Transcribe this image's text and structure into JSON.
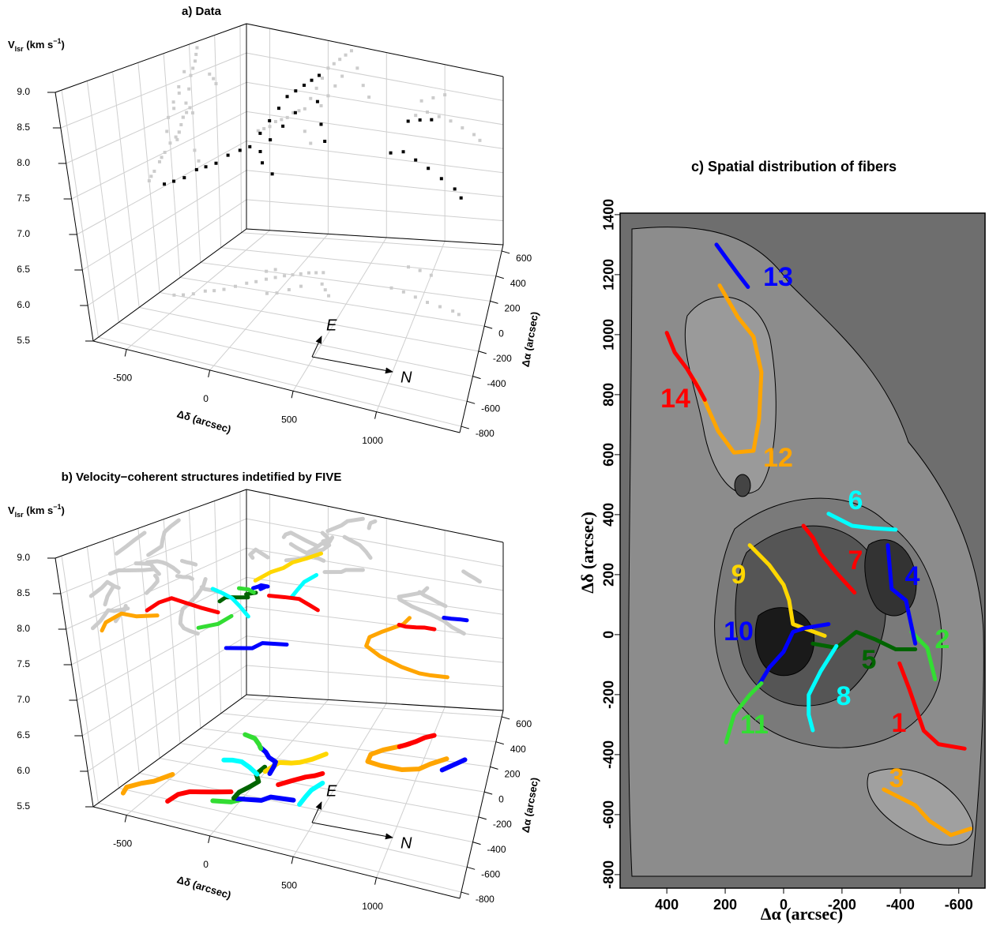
{
  "chart_data": [
    {
      "type": "scatter3d",
      "title": "a) Data",
      "zlabel": [
        "V",
        "lsr",
        " (km s",
        "−1",
        ")"
      ],
      "xlabel": "Δδ (arcsec)",
      "ylabel": "Δα (arcsec)",
      "xlim": [
        -700,
        1500
      ],
      "xticks": [
        -500,
        0,
        500,
        1000
      ],
      "ylim": [
        -850,
        650
      ],
      "yticks": [
        600,
        400,
        200,
        0,
        -200,
        -400,
        -600,
        -800
      ],
      "zlim": [
        5.5,
        9.0
      ],
      "zticks": [
        5.5,
        {
          "value": 6,
          "label": "6.0"
        },
        6.5,
        {
          "value": 7,
          "label": "7.0"
        },
        7.5,
        {
          "value": 8,
          "label": "8.0"
        },
        8.5,
        {
          "value": 9,
          "label": "9.0"
        }
      ],
      "grid": true,
      "compass": [
        "E",
        "N"
      ],
      "shadow_color": "#cccccc",
      "points": {
        "color": "#000000",
        "x": [
          -600,
          -550,
          -500,
          -450,
          -400,
          -350,
          -300,
          -250,
          -200,
          -150,
          -100,
          -50,
          0,
          50,
          100,
          150,
          200,
          120,
          60,
          0,
          -60,
          250,
          300,
          350,
          -200,
          -150,
          800,
          900,
          1000,
          750,
          850,
          950,
          1050,
          1150,
          1250,
          1300
        ],
        "y": [
          -200,
          -180,
          -150,
          -100,
          -80,
          -50,
          0,
          50,
          80,
          120,
          150,
          180,
          200,
          220,
          240,
          250,
          260,
          100,
          50,
          0,
          -20,
          150,
          100,
          50,
          200,
          230,
          400,
          380,
          350,
          200,
          180,
          150,
          120,
          100,
          80,
          60
        ],
        "z": [
          7.2,
          7.25,
          7.3,
          7.4,
          7.45,
          7.5,
          7.6,
          7.65,
          7.7,
          7.9,
          8.1,
          8.3,
          8.5,
          8.6,
          8.7,
          8.8,
          8.9,
          8.4,
          8.2,
          8.0,
          7.8,
          8.6,
          8.3,
          8.1,
          7.3,
          7.1,
          8.2,
          8.3,
          8.4,
          7.9,
          8.0,
          7.95,
          7.9,
          7.8,
          7.7,
          7.6
        ]
      }
    },
    {
      "type": "scatter3d",
      "title": "b) Velocity−coherent structures indetified by FIVE",
      "zlabel": [
        "V",
        "lsr",
        " (km s",
        "−1",
        ")"
      ],
      "xlabel": "Δδ (arcsec)",
      "ylabel": "Δα (arcsec)",
      "xlim": [
        -700,
        1500
      ],
      "xticks": [
        -500,
        0,
        500,
        1000
      ],
      "ylim": [
        -850,
        650
      ],
      "yticks": [
        600,
        400,
        200,
        0,
        -200,
        -400,
        -600,
        -800
      ],
      "zlim": [
        5.5,
        9.0
      ],
      "zticks": [
        5.5,
        {
          "value": 6,
          "label": "6.0"
        },
        6.5,
        {
          "value": 7,
          "label": "7.0"
        },
        7.5,
        {
          "value": 8,
          "label": "8.0"
        },
        8.5,
        {
          "value": 9,
          "label": "9.0"
        }
      ],
      "grid": true,
      "compass": [
        "E",
        "N"
      ],
      "shadow_color": "#cccccc",
      "series": [
        {
          "color": "#ff0000",
          "x": [
            -96,
            -180,
            -250,
            -320,
            -365,
            -380
          ],
          "y": [
            -397,
            -430,
            -455,
            -480,
            -530,
            -620
          ],
          "z": [
            8.25,
            8.3,
            8.35,
            8.4,
            8.35,
            8.3
          ]
        },
        {
          "color": "#33dd33",
          "x": [
            9,
            -44,
            -149
          ],
          "y": [
            -438,
            -492,
            -519
          ],
          "z": [
            8.3,
            8.2,
            8.1
          ]
        },
        {
          "color": "#ffa500",
          "x": [
            -516,
            -569,
            -621,
            -668,
            -647
          ],
          "y": [
            -343,
            -451,
            -500,
            -573,
            -640
          ],
          "z": [
            7.9,
            7.95,
            8.0,
            7.9,
            7.85
          ]
        },
        {
          "color": "#0000ff",
          "x": [
            298,
            153,
            114,
            -30
          ],
          "y": [
            -357,
            -370,
            -419,
            -451
          ],
          "z": [
            7.95,
            7.9,
            7.85,
            7.8
          ]
        },
        {
          "color": "#006400",
          "x": [
            -30,
            -44,
            9,
            -17,
            -49,
            -49
          ],
          "y": [
            -100,
            -181,
            -249,
            -316,
            -384,
            -451
          ],
          "z": [
            8.3,
            8.35,
            8.4,
            8.45,
            8.5,
            8.5
          ]
        },
        {
          "color": "#00ffff",
          "x": [
            403,
            363,
            355,
            350
          ],
          "y": [
            -154,
            -235,
            -303,
            -384
          ],
          "z": [
            8.9,
            8.85,
            8.8,
            8.75
          ]
        },
        {
          "color": "#ff0000",
          "x": [
            363,
            324,
            271,
            206,
            140
          ],
          "y": [
            -68,
            -100,
            -127,
            -181,
            -243
          ],
          "z": [
            8.2,
            8.3,
            8.4,
            8.45,
            8.5
          ]
        },
        {
          "color": "#00ffff",
          "x": [
            -38,
            -122,
            -201,
            -267,
            -319
          ],
          "y": [
            -181,
            -127,
            -86,
            -86,
            -100
          ],
          "z": [
            8.0,
            8.05,
            8.1,
            8.15,
            8.2
          ]
        },
        {
          "color": "#ffd700",
          "x": [
            298,
            232,
            166,
            114,
            35,
            -4
          ],
          "y": [
            116,
            49,
            0,
            -19,
            -32,
            -141
          ],
          "z": [
            8.9,
            8.85,
            8.8,
            8.7,
            8.6,
            8.55
          ]
        },
        {
          "color": "#0000ff",
          "x": [
            -175,
            -110,
            -57,
            9,
            22,
            35
          ],
          "y": [
            89,
            49,
            0,
            -32,
            -73,
            -154
          ],
          "z": [
            8.1,
            8.2,
            8.3,
            8.35,
            8.4,
            8.45
          ]
        },
        {
          "color": "#33dd33",
          "x": [
            -359,
            -267,
            -201,
            -162
          ],
          "y": [
            197,
            170,
            116,
            76
          ],
          "z": [
            7.9,
            7.95,
            8.0,
            8.05
          ]
        },
        {
          "color": "#ffa500",
          "x": [
            1164,
            1059,
            993,
            875,
            718,
            613,
            607,
            678,
            809,
            849
          ],
          "y": [
            219,
            157,
            103,
            76,
            84,
            103,
            170,
            224,
            284,
            305
          ],
          "z": [
            7.0,
            7.1,
            7.2,
            7.3,
            7.4,
            7.5,
            7.55,
            7.6,
            7.7,
            7.8
          ]
        },
        {
          "color": "#0000ff",
          "x": [
            1300,
            1256,
            1203,
            1159
          ],
          "y": [
            230,
            197,
            157,
            122
          ],
          "z": [
            8.1,
            8.15,
            8.2,
            8.25
          ]
        },
        {
          "color": "#ff0000",
          "x": [
            1006,
            941,
            888,
            823,
            783
          ],
          "y": [
            400,
            373,
            332,
            292,
            270
          ],
          "z": [
            7.5,
            7.55,
            7.6,
            7.65,
            7.7
          ]
        }
      ]
    },
    {
      "type": "line",
      "title": "c) Spatial distribution of fibers",
      "xlabel": "Δα (arcsec)",
      "ylabel": "Δδ (arcsec)",
      "xlim": [
        560,
        -690
      ],
      "xticks": [
        400,
        200,
        0,
        -200,
        -400,
        -600
      ],
      "ylim": [
        -845,
        1405
      ],
      "yticks": [
        -800,
        -600,
        -400,
        -200,
        0,
        200,
        400,
        600,
        800,
        1000,
        1200,
        1400
      ],
      "series": [
        {
          "name": "1",
          "color": "#ff0000",
          "x": [
            -397,
            -430,
            -455,
            -480,
            -530,
            -620
          ],
          "y": [
            -96,
            -180,
            -250,
            -320,
            -365,
            -380
          ]
        },
        {
          "name": "2",
          "color": "#33dd33",
          "x": [
            -438,
            -492,
            -519
          ],
          "y": [
            9,
            -44,
            -149
          ]
        },
        {
          "name": "3",
          "color": "#ffa500",
          "x": [
            -343,
            -451,
            -500,
            -573,
            -640
          ],
          "y": [
            -516,
            -569,
            -621,
            -668,
            -647
          ]
        },
        {
          "name": "4",
          "color": "#0000ff",
          "x": [
            -357,
            -370,
            -419,
            -451
          ],
          "y": [
            298,
            153,
            114,
            -30
          ]
        },
        {
          "name": "5",
          "color": "#006400",
          "x": [
            -100,
            -181,
            -249,
            -316,
            -384,
            -451
          ],
          "y": [
            -30,
            -44,
            9,
            -17,
            -49,
            -49
          ]
        },
        {
          "name": "6",
          "color": "#00ffff",
          "x": [
            -154,
            -235,
            -303,
            -384
          ],
          "y": [
            403,
            363,
            355,
            350
          ]
        },
        {
          "name": "7",
          "color": "#ff0000",
          "x": [
            -68,
            -100,
            -127,
            -181,
            -243
          ],
          "y": [
            363,
            324,
            271,
            206,
            140
          ]
        },
        {
          "name": "8",
          "color": "#00ffff",
          "x": [
            -181,
            -127,
            -86,
            -86,
            -100
          ],
          "y": [
            -38,
            -122,
            -201,
            -267,
            -319
          ]
        },
        {
          "name": "9",
          "color": "#ffd700",
          "x": [
            116,
            49,
            0,
            -19,
            -32,
            -141
          ],
          "y": [
            298,
            232,
            166,
            114,
            35,
            -4
          ]
        },
        {
          "name": "10",
          "color": "#0000ff",
          "x": [
            89,
            49,
            0,
            -32,
            -73,
            -154
          ],
          "y": [
            -175,
            -110,
            -57,
            9,
            22,
            35
          ]
        },
        {
          "name": "11",
          "color": "#33dd33",
          "x": [
            197,
            170,
            116,
            76
          ],
          "y": [
            -359,
            -267,
            -201,
            -162
          ]
        },
        {
          "name": "12",
          "color": "#ffa500",
          "x": [
            219,
            157,
            103,
            76,
            84,
            103,
            170,
            224,
            284,
            305
          ],
          "y": [
            1164,
            1059,
            993,
            875,
            718,
            613,
            607,
            678,
            809,
            849
          ]
        },
        {
          "name": "13",
          "color": "#0000ff",
          "x": [
            230,
            197,
            157,
            122
          ],
          "y": [
            1300,
            1256,
            1203,
            1159
          ]
        },
        {
          "name": "14",
          "color": "#ff0000",
          "x": [
            400,
            373,
            332,
            292,
            270
          ],
          "y": [
            1006,
            941,
            888,
            823,
            783
          ]
        }
      ]
    }
  ]
}
